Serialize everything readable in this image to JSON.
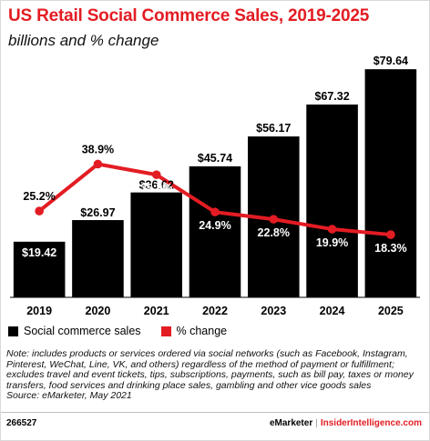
{
  "header": {
    "title": "US Retail Social Commerce Sales, 2019-2025",
    "subtitle": "billions and % change"
  },
  "legend": {
    "bars_label": "Social commerce sales",
    "line_label": "% change"
  },
  "note": "Note: includes products or services ordered via social networks (such as Facebook, Instagram, Pinterest, WeChat, Line, VK, and others) regardless of the method of payment or fulfillment; excludes travel and event tickets, tips, subscriptions, payments, such as bill pay, taxes or money transfers, food services and drinking place sales, gambling and other vice goods sales",
  "source": "Source: eMarketer, May 2021",
  "footer": {
    "code": "266527",
    "brand1": "eMarketer",
    "separator": "|",
    "brand2": "InsiderIntelligence.com"
  },
  "colors": {
    "title": "#e31c23",
    "bar": "#000000",
    "line": "#e31c23"
  },
  "chart_data": {
    "type": "bar",
    "categories": [
      "2019",
      "2020",
      "2021",
      "2022",
      "2023",
      "2024",
      "2025"
    ],
    "series": [
      {
        "name": "Social commerce sales",
        "type": "bar",
        "values": [
          19.42,
          26.97,
          36.62,
          45.74,
          56.17,
          67.32,
          79.64
        ],
        "labels": [
          "$19.42",
          "$26.97",
          "$36.62",
          "$45.74",
          "$56.17",
          "$67.32",
          "$79.64"
        ]
      },
      {
        "name": "% change",
        "type": "line",
        "values": [
          25.2,
          38.9,
          35.8,
          24.9,
          22.8,
          19.9,
          18.3
        ],
        "labels": [
          "25.2%",
          "38.9%",
          "35.8%",
          "24.9%",
          "22.8%",
          "19.9%",
          "18.3%"
        ]
      }
    ],
    "ylim": [
      0,
      80
    ],
    "y2lim": [
      0,
      60
    ],
    "grid": false,
    "legend_position": "bottom-left"
  }
}
